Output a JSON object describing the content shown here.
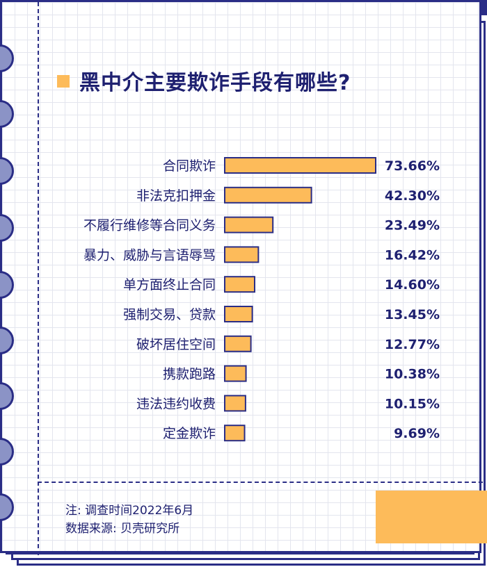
{
  "title": "黑中介主要欺诈手段有哪些?",
  "notes": {
    "survey_time": "注: 调查时间2022年6月",
    "source": "数据来源: 贝壳研究所"
  },
  "colors": {
    "bar": "#fdbb5a",
    "outline": "#2a2d86",
    "text": "#1e2070",
    "accent": "#fdbb5a"
  },
  "chart_data": {
    "type": "bar",
    "orientation": "horizontal",
    "title": "黑中介主要欺诈手段有哪些?",
    "categories": [
      "合同欺诈",
      "非法克扣押金",
      "不履行维修等合同义务",
      "暴力、威胁与言语辱骂",
      "单方面终止合同",
      "强制交易、贷款",
      "破坏居住空间",
      "携款跑路",
      "违法违约收费",
      "定金欺诈"
    ],
    "values": [
      73.66,
      42.3,
      23.49,
      16.42,
      14.6,
      13.45,
      12.77,
      10.38,
      10.15,
      9.69
    ],
    "value_labels": [
      "73.66%",
      "42.30%",
      "23.49%",
      "16.42%",
      "14.60%",
      "13.45%",
      "12.77%",
      "10.38%",
      "10.15%",
      "9.69%"
    ],
    "unit": "%",
    "xlim": [
      0,
      100
    ],
    "grid": false,
    "legend": "none"
  }
}
